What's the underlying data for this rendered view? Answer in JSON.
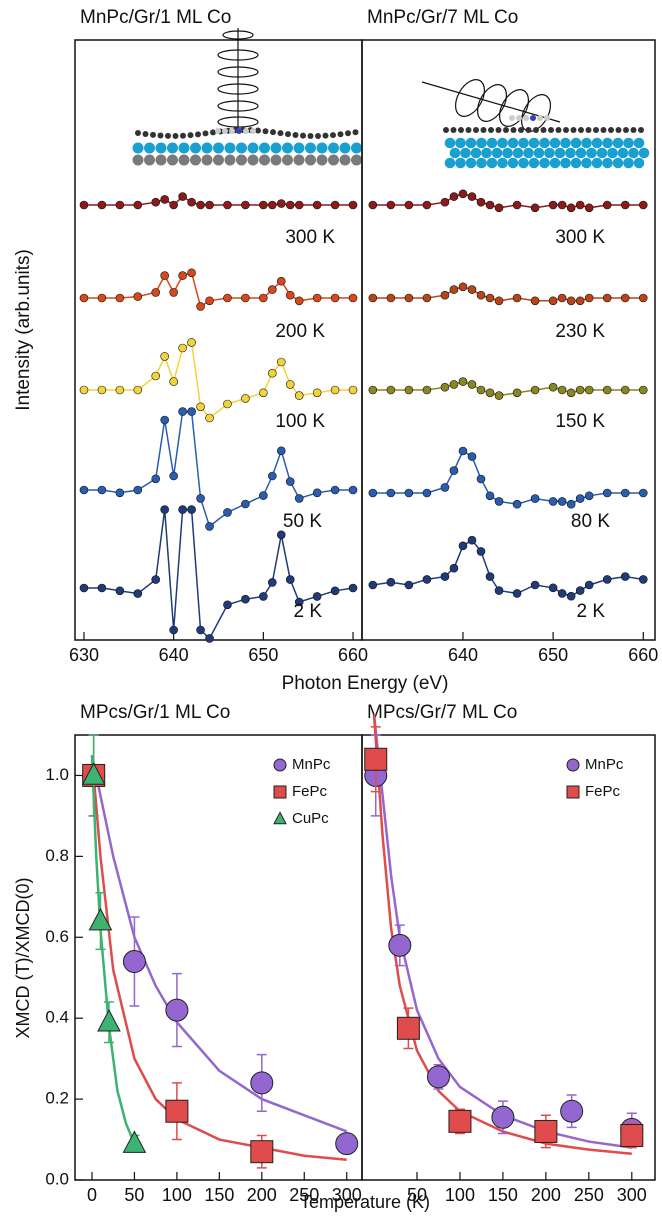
{
  "chart_data": [
    {
      "type": "line",
      "title": "MnPc/Gr/1 ML Co",
      "xlabel": "Photon Energy (eV)",
      "ylabel": "Intensity (arb.units)",
      "x": [
        630,
        632,
        634,
        636,
        638,
        639,
        640,
        641,
        642,
        643,
        644,
        646,
        648,
        650,
        651,
        652,
        653,
        654,
        656,
        658,
        660
      ],
      "xlim": [
        629,
        661
      ],
      "xticks": [
        630,
        640,
        650,
        660
      ],
      "series": [
        {
          "name": "300 K",
          "color": "#8b1a1a",
          "values": [
            0,
            0,
            0,
            0,
            0.1,
            0.2,
            0,
            0.3,
            0.1,
            0,
            0,
            0,
            0,
            0,
            0,
            0.05,
            0,
            0,
            0,
            0,
            0
          ]
        },
        {
          "name": "200 K",
          "color": "#d9481c",
          "values": [
            0,
            0,
            0,
            0.05,
            0.2,
            0.8,
            0.2,
            0.8,
            0.9,
            -0.3,
            -0.1,
            0,
            0,
            0,
            0.3,
            0.6,
            0.1,
            -0.1,
            0,
            0,
            0
          ]
        },
        {
          "name": "100 K",
          "color": "#f2d43a",
          "values": [
            0,
            0,
            0,
            0,
            0.5,
            1.2,
            0.3,
            1.5,
            1.7,
            -0.6,
            -1.0,
            -0.5,
            -0.3,
            -0.1,
            0.6,
            1.0,
            0.2,
            -0.2,
            -0.1,
            0,
            0
          ]
        },
        {
          "name": "50 K",
          "color": "#2a5db0",
          "values": [
            0,
            0,
            -0.1,
            0,
            0.4,
            2.5,
            0.5,
            2.8,
            2.8,
            -0.3,
            -1.3,
            -0.8,
            -0.5,
            -0.2,
            0.5,
            1.4,
            0.3,
            -0.3,
            -0.1,
            0,
            0
          ]
        },
        {
          "name": "2 K",
          "color": "#1f3b7a",
          "values": [
            0,
            0,
            -0.1,
            -0.2,
            0.3,
            2.8,
            -1.5,
            2.8,
            2.8,
            -1.5,
            -1.8,
            -0.6,
            -0.4,
            -0.3,
            0.2,
            1.9,
            0.3,
            -0.5,
            -0.3,
            -0.1,
            0
          ]
        }
      ]
    },
    {
      "type": "line",
      "title": "MnPc/Gr/7 ML Co",
      "x": [
        630,
        632,
        634,
        636,
        638,
        639,
        640,
        641,
        642,
        643,
        644,
        646,
        648,
        650,
        651,
        652,
        653,
        654,
        656,
        658,
        660
      ],
      "xlim": [
        628.8,
        661.3
      ],
      "xticks": [
        640,
        650,
        660
      ],
      "series": [
        {
          "name": "300 K",
          "color": "#8b1a1a",
          "values": [
            0,
            0,
            0,
            0,
            0.1,
            0.3,
            0.4,
            0.3,
            0.1,
            0,
            -0.1,
            0,
            -0.1,
            0,
            0,
            -0.1,
            0,
            -0.1,
            0,
            0,
            0
          ]
        },
        {
          "name": "230 K",
          "color": "#b8441a",
          "values": [
            0,
            0,
            0,
            0,
            0.1,
            0.3,
            0.4,
            0.3,
            0.1,
            0,
            -0.1,
            0,
            -0.1,
            -0.1,
            0,
            -0.1,
            -0.1,
            0,
            0,
            0,
            0
          ]
        },
        {
          "name": "150 K",
          "color": "#8a8620",
          "values": [
            0,
            0,
            0,
            0,
            0.1,
            0.2,
            0.3,
            0.2,
            0,
            -0.1,
            -0.2,
            -0.1,
            0,
            0.1,
            0,
            -0.1,
            0,
            0,
            0,
            0,
            0
          ]
        },
        {
          "name": "80 K",
          "color": "#2a5db0",
          "values": [
            0,
            0,
            0,
            0,
            0.2,
            0.8,
            1.5,
            1.3,
            0.5,
            -0.1,
            -0.3,
            -0.4,
            -0.2,
            -0.3,
            -0.3,
            -0.4,
            -0.2,
            -0.1,
            0,
            0,
            0
          ]
        },
        {
          "name": "2 K",
          "color": "#1f3b7a",
          "values": [
            0,
            0.1,
            0,
            0.2,
            0.3,
            0.6,
            1.4,
            1.6,
            1.2,
            0.3,
            -0.2,
            -0.3,
            0,
            -0.1,
            -0.3,
            -0.4,
            -0.2,
            0,
            0.2,
            0.3,
            0.2
          ]
        }
      ]
    },
    {
      "type": "scatter",
      "title": "MPcs/Gr/1 ML Co",
      "xlabel": "Temperature (K)",
      "ylabel": "XMCD (T)/XMCD(0)",
      "xlim": [
        -20,
        318
      ],
      "xticks": [
        0,
        50,
        100,
        150,
        200,
        250,
        300
      ],
      "ylim": [
        0,
        1.1
      ],
      "yticks": [
        {
          "value": 0,
          "label": "0.0"
        },
        {
          "value": 0.2,
          "label": "0.2"
        },
        {
          "value": 0.4,
          "label": "0.4"
        },
        {
          "value": 0.6,
          "label": "0.6"
        },
        {
          "value": 0.8,
          "label": "0.8"
        },
        {
          "value": 1,
          "label": "1.0"
        }
      ],
      "legend": "top right",
      "series": [
        {
          "name": "MnPc",
          "color": "#9467d0",
          "marker": "circle",
          "x": [
            2,
            50,
            100,
            200,
            300
          ],
          "values": [
            1.0,
            0.54,
            0.42,
            0.24,
            0.09
          ],
          "errors": [
            0.1,
            0.11,
            0.09,
            0.07,
            0.02
          ],
          "fit": {
            "x": [
              0,
              10,
              25,
              50,
              75,
              100,
              150,
              200,
              250,
              300
            ],
            "values": [
              1.05,
              0.95,
              0.8,
              0.6,
              0.48,
              0.39,
              0.27,
              0.2,
              0.16,
              0.12
            ]
          }
        },
        {
          "name": "FePc",
          "color": "#e04b4b",
          "marker": "square",
          "x": [
            2,
            100,
            200
          ],
          "values": [
            1.0,
            0.17,
            0.07
          ],
          "errors": [
            0.1,
            0.07,
            0.04
          ],
          "fit": {
            "x": [
              0,
              10,
              25,
              50,
              75,
              100,
              150,
              200,
              250,
              300
            ],
            "values": [
              1.05,
              0.8,
              0.52,
              0.3,
              0.2,
              0.15,
              0.1,
              0.08,
              0.06,
              0.05
            ]
          }
        },
        {
          "name": "CuPc",
          "color": "#3cb371",
          "marker": "triangle",
          "x": [
            2,
            10,
            20,
            50
          ],
          "values": [
            1.0,
            0.64,
            0.39,
            0.09
          ],
          "errors": [
            0.1,
            0.07,
            0.05,
            0.02
          ],
          "fit": {
            "x": [
              0,
              5,
              10,
              20,
              30,
              40,
              50
            ],
            "values": [
              1.05,
              0.8,
              0.62,
              0.38,
              0.22,
              0.14,
              0.09
            ]
          }
        }
      ]
    },
    {
      "type": "scatter",
      "title": "MPcs/Gr/7 ML Co",
      "xlim": [
        -14,
        327
      ],
      "xticks": [
        50,
        100,
        150,
        200,
        250,
        300
      ],
      "ylim": [
        0,
        1.1
      ],
      "legend": "top right",
      "series": [
        {
          "name": "MnPc",
          "color": "#9467d0",
          "marker": "circle",
          "x": [
            2,
            30,
            75,
            150,
            230,
            300
          ],
          "values": [
            1.0,
            0.58,
            0.255,
            0.155,
            0.17,
            0.125
          ],
          "errors": [
            0.1,
            0.05,
            0.03,
            0.04,
            0.04,
            0.04
          ],
          "fit": {
            "x": [
              0,
              10,
              20,
              30,
              50,
              75,
              100,
              150,
              200,
              250,
              300
            ],
            "values": [
              1.15,
              0.95,
              0.75,
              0.6,
              0.42,
              0.3,
              0.23,
              0.16,
              0.12,
              0.095,
              0.08
            ]
          }
        },
        {
          "name": "FePc",
          "color": "#e04b4b",
          "marker": "square",
          "x": [
            2,
            40,
            100,
            200,
            300
          ],
          "values": [
            1.04,
            0.375,
            0.145,
            0.12,
            0.11
          ],
          "errors": [
            0.08,
            0.05,
            0.03,
            0.04,
            0.03
          ],
          "fit": {
            "x": [
              0,
              10,
              20,
              30,
              50,
              75,
              100,
              150,
              200,
              250,
              300
            ],
            "values": [
              1.15,
              0.85,
              0.62,
              0.48,
              0.32,
              0.22,
              0.17,
              0.12,
              0.09,
              0.075,
              0.065
            ]
          }
        }
      ]
    }
  ]
}
